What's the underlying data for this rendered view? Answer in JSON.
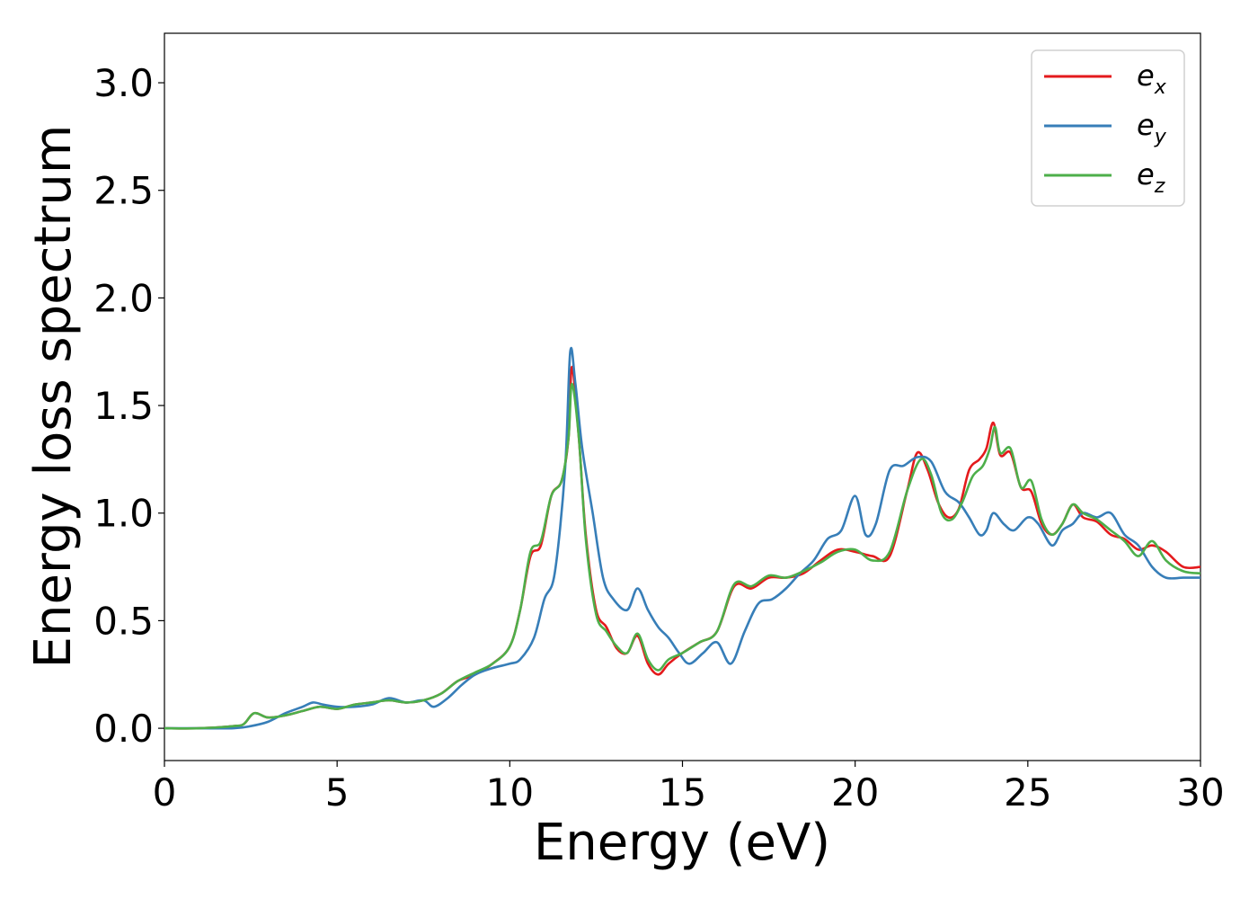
{
  "chart_data": {
    "type": "line",
    "title": "",
    "xlabel": "Energy (eV)",
    "ylabel": "Energy loss spectrum",
    "xlim": [
      0,
      30
    ],
    "ylim": [
      -0.15,
      3.23
    ],
    "xticks": [
      "0",
      "5",
      "10",
      "15",
      "20",
      "25",
      "30"
    ],
    "yticks": [
      "0.0",
      "0.5",
      "1.0",
      "1.5",
      "2.0",
      "2.5",
      "3.0"
    ],
    "grid": false,
    "legend_position": "top-right",
    "series": [
      {
        "name": "e",
        "sub": "x",
        "color": "#e41a1c",
        "x": [
          0,
          1,
          2,
          2.3,
          2.6,
          3,
          3.5,
          4,
          4.5,
          5,
          5.5,
          6,
          6.5,
          7,
          7.5,
          8,
          8.5,
          9,
          9.5,
          10,
          10.3,
          10.6,
          10.9,
          11.2,
          11.5,
          11.7,
          11.8,
          12.0,
          12.2,
          12.5,
          12.8,
          13.1,
          13.4,
          13.7,
          14.0,
          14.3,
          14.6,
          15,
          15.5,
          16,
          16.5,
          17,
          17.5,
          18,
          18.5,
          19,
          19.5,
          20,
          20.5,
          21,
          21.5,
          21.8,
          22.1,
          22.4,
          22.7,
          23,
          23.3,
          23.6,
          23.8,
          24.0,
          24.2,
          24.5,
          24.8,
          25.1,
          25.4,
          25.7,
          26,
          26.3,
          26.6,
          27,
          27.4,
          27.8,
          28.2,
          28.6,
          29,
          29.5,
          30
        ],
        "y": [
          0.0,
          0.0,
          0.01,
          0.02,
          0.07,
          0.05,
          0.06,
          0.08,
          0.1,
          0.09,
          0.11,
          0.12,
          0.13,
          0.12,
          0.13,
          0.16,
          0.22,
          0.25,
          0.3,
          0.38,
          0.55,
          0.8,
          0.85,
          1.08,
          1.15,
          1.35,
          1.68,
          1.35,
          0.9,
          0.55,
          0.47,
          0.37,
          0.35,
          0.43,
          0.3,
          0.25,
          0.3,
          0.35,
          0.4,
          0.45,
          0.66,
          0.65,
          0.7,
          0.7,
          0.72,
          0.78,
          0.83,
          0.82,
          0.8,
          0.8,
          1.1,
          1.28,
          1.2,
          1.05,
          0.98,
          1.02,
          1.2,
          1.25,
          1.3,
          1.42,
          1.27,
          1.28,
          1.12,
          1.1,
          0.95,
          0.9,
          0.95,
          1.04,
          0.98,
          0.96,
          0.9,
          0.88,
          0.83,
          0.85,
          0.82,
          0.75,
          0.75
        ]
      },
      {
        "name": "e",
        "sub": "y",
        "color": "#377eb8",
        "x": [
          0,
          1,
          2,
          2.5,
          3,
          3.5,
          4,
          4.3,
          4.6,
          5,
          5.5,
          6,
          6.5,
          7,
          7.5,
          7.8,
          8.2,
          8.6,
          9,
          9.5,
          10,
          10.3,
          10.7,
          11.0,
          11.3,
          11.6,
          11.75,
          11.9,
          12.1,
          12.4,
          12.7,
          13.0,
          13.4,
          13.7,
          14.0,
          14.3,
          14.6,
          14.9,
          15.2,
          15.6,
          16.0,
          16.4,
          16.8,
          17.2,
          17.6,
          18.0,
          18.4,
          18.8,
          19.2,
          19.6,
          20.0,
          20.3,
          20.6,
          21.0,
          21.4,
          21.8,
          22.2,
          22.6,
          23.0,
          23.3,
          23.6,
          23.8,
          24.0,
          24.3,
          24.6,
          25.0,
          25.3,
          25.7,
          26.0,
          26.3,
          26.6,
          27.0,
          27.4,
          27.8,
          28.2,
          28.6,
          29.0,
          29.5,
          30
        ],
        "y": [
          0.0,
          0.0,
          0.0,
          0.01,
          0.03,
          0.07,
          0.1,
          0.12,
          0.11,
          0.1,
          0.1,
          0.11,
          0.14,
          0.12,
          0.13,
          0.1,
          0.14,
          0.2,
          0.25,
          0.28,
          0.3,
          0.32,
          0.42,
          0.6,
          0.72,
          1.2,
          1.75,
          1.6,
          1.3,
          1.0,
          0.7,
          0.6,
          0.55,
          0.65,
          0.55,
          0.47,
          0.42,
          0.35,
          0.3,
          0.35,
          0.4,
          0.3,
          0.45,
          0.58,
          0.6,
          0.65,
          0.72,
          0.78,
          0.88,
          0.92,
          1.08,
          0.9,
          0.95,
          1.2,
          1.22,
          1.26,
          1.24,
          1.1,
          1.05,
          0.98,
          0.9,
          0.92,
          1.0,
          0.95,
          0.92,
          0.98,
          0.95,
          0.85,
          0.92,
          0.95,
          1.0,
          0.98,
          1.0,
          0.9,
          0.85,
          0.75,
          0.7,
          0.7,
          0.7
        ]
      },
      {
        "name": "e",
        "sub": "z",
        "color": "#4daf4a",
        "x": [
          0,
          1,
          2,
          2.3,
          2.6,
          3,
          3.5,
          4,
          4.5,
          5,
          5.5,
          6,
          6.5,
          7,
          7.5,
          8,
          8.5,
          9,
          9.5,
          10,
          10.3,
          10.6,
          10.9,
          11.2,
          11.5,
          11.7,
          11.8,
          12.0,
          12.2,
          12.5,
          12.8,
          13.1,
          13.4,
          13.7,
          14.0,
          14.3,
          14.6,
          15,
          15.5,
          16,
          16.5,
          17,
          17.5,
          18,
          18.5,
          19,
          19.5,
          20,
          20.5,
          21,
          21.5,
          21.9,
          22.2,
          22.5,
          22.8,
          23.1,
          23.4,
          23.7,
          23.9,
          24.05,
          24.2,
          24.5,
          24.8,
          25.1,
          25.4,
          25.7,
          26.0,
          26.3,
          26.6,
          27.0,
          27.4,
          27.8,
          28.2,
          28.6,
          29,
          29.5,
          30
        ],
        "y": [
          0.0,
          0.0,
          0.01,
          0.02,
          0.07,
          0.05,
          0.06,
          0.08,
          0.1,
          0.09,
          0.11,
          0.12,
          0.13,
          0.12,
          0.13,
          0.16,
          0.22,
          0.26,
          0.3,
          0.38,
          0.55,
          0.82,
          0.87,
          1.08,
          1.15,
          1.35,
          1.6,
          1.35,
          0.88,
          0.53,
          0.45,
          0.38,
          0.35,
          0.44,
          0.32,
          0.27,
          0.32,
          0.35,
          0.4,
          0.45,
          0.67,
          0.66,
          0.71,
          0.7,
          0.73,
          0.77,
          0.82,
          0.83,
          0.78,
          0.82,
          1.1,
          1.25,
          1.18,
          1.0,
          0.97,
          1.05,
          1.17,
          1.22,
          1.3,
          1.4,
          1.28,
          1.3,
          1.12,
          1.15,
          0.97,
          0.9,
          0.95,
          1.04,
          1.0,
          0.97,
          0.92,
          0.87,
          0.8,
          0.87,
          0.78,
          0.73,
          0.72
        ]
      }
    ]
  }
}
